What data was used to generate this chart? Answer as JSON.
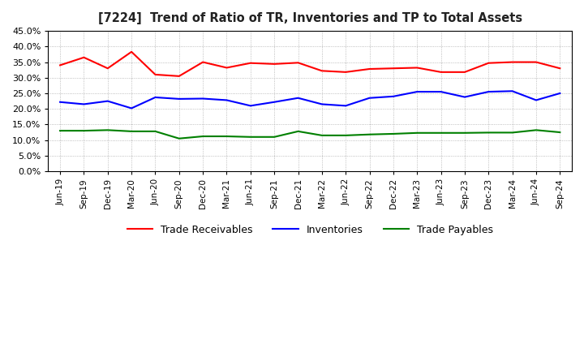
{
  "title": "[7224]  Trend of Ratio of TR, Inventories and TP to Total Assets",
  "x_labels": [
    "Jun-19",
    "Sep-19",
    "Dec-19",
    "Mar-20",
    "Jun-20",
    "Sep-20",
    "Dec-20",
    "Mar-21",
    "Jun-21",
    "Sep-21",
    "Dec-21",
    "Mar-22",
    "Jun-22",
    "Sep-22",
    "Dec-22",
    "Mar-23",
    "Jun-23",
    "Sep-23",
    "Dec-23",
    "Mar-24",
    "Jun-24",
    "Sep-24"
  ],
  "trade_receivables": [
    0.34,
    0.365,
    0.33,
    0.383,
    0.31,
    0.305,
    0.35,
    0.332,
    0.347,
    0.344,
    0.348,
    0.322,
    0.318,
    0.328,
    0.33,
    0.332,
    0.318,
    0.318,
    0.347,
    0.35,
    0.35,
    0.33
  ],
  "inventories": [
    0.222,
    0.215,
    0.225,
    0.202,
    0.237,
    0.232,
    0.233,
    0.228,
    0.21,
    0.222,
    0.235,
    0.215,
    0.21,
    0.235,
    0.24,
    0.255,
    0.255,
    0.238,
    0.255,
    0.257,
    0.228,
    0.25
  ],
  "trade_payables": [
    0.13,
    0.13,
    0.132,
    0.128,
    0.128,
    0.105,
    0.112,
    0.112,
    0.11,
    0.11,
    0.128,
    0.115,
    0.115,
    0.118,
    0.12,
    0.123,
    0.123,
    0.123,
    0.124,
    0.124,
    0.132,
    0.125
  ],
  "tr_color": "#ff0000",
  "inv_color": "#0000ff",
  "tp_color": "#008000",
  "ylim": [
    0.0,
    0.45
  ],
  "yticks": [
    0.0,
    0.05,
    0.1,
    0.15,
    0.2,
    0.25,
    0.3,
    0.35,
    0.4,
    0.45
  ],
  "background_color": "#ffffff",
  "plot_bg_color": "#ffffff",
  "grid_color": "#aaaaaa",
  "legend_labels": [
    "Trade Receivables",
    "Inventories",
    "Trade Payables"
  ]
}
